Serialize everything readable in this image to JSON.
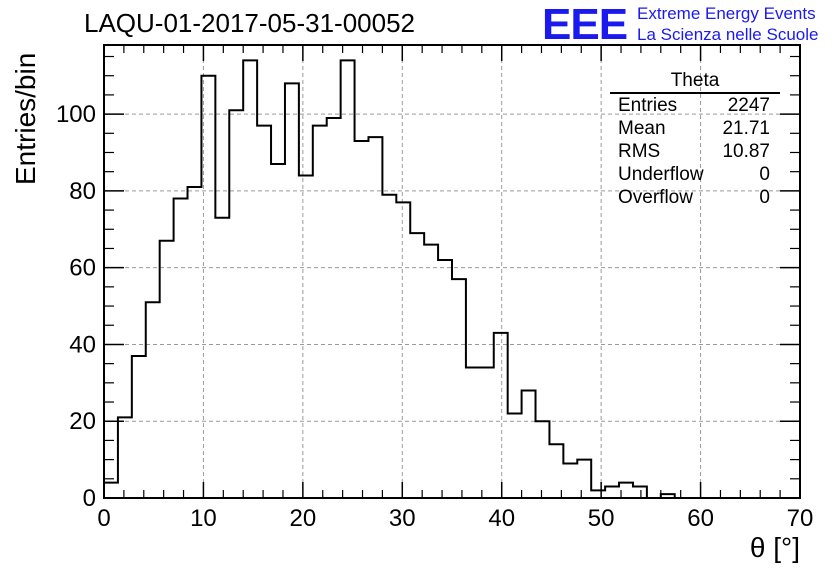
{
  "header": {
    "title": "LAQU-01-2017-05-31-00052",
    "logo_text": "EEE",
    "logo_line1": "Extreme Energy Events",
    "logo_line2": "La Scienza nelle Scuole"
  },
  "stats": {
    "title": "Theta",
    "rows": [
      {
        "label": "Entries",
        "value": "2247"
      },
      {
        "label": "Mean",
        "value": "21.71"
      },
      {
        "label": "RMS",
        "value": "10.87"
      },
      {
        "label": "Underflow",
        "value": "0"
      },
      {
        "label": "Overflow",
        "value": "0"
      }
    ]
  },
  "chart_data": {
    "type": "bar",
    "style": "step-histogram",
    "title": "LAQU-01-2017-05-31-00052",
    "xlabel": "θ [°]",
    "ylabel": "Entries/bin",
    "xlim": [
      0,
      70
    ],
    "ylim": [
      0,
      118
    ],
    "bin_width": 1.4,
    "bin_start": 0,
    "values": [
      4,
      21,
      37,
      51,
      67,
      78,
      81,
      110,
      73,
      101,
      114,
      97,
      87,
      108,
      84,
      97,
      99,
      114,
      93,
      94,
      79,
      77,
      69,
      66,
      62,
      57,
      34,
      34,
      43,
      22,
      28,
      20,
      14,
      9,
      10,
      2,
      3,
      4,
      3,
      0,
      1,
      0,
      0,
      0,
      0,
      0,
      0,
      0,
      0,
      0
    ],
    "xticks": [
      0,
      10,
      20,
      30,
      40,
      50,
      60,
      70
    ],
    "yticks": [
      0,
      20,
      40,
      60,
      80,
      100
    ],
    "grid": true,
    "colors": {
      "line": "#000000",
      "grid": "#9a9a9a",
      "logo": "#1a1aee"
    }
  }
}
